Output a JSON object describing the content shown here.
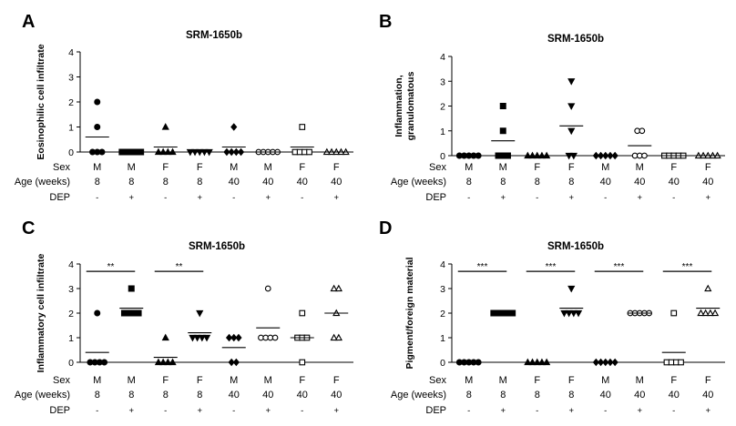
{
  "panel_letters": [
    "A",
    "B",
    "C",
    "D"
  ],
  "table_row_labels": [
    "Sex",
    "Age (weeks)",
    "DEP"
  ],
  "table_columns": [
    {
      "sex": "M",
      "age": "8",
      "dep": "-"
    },
    {
      "sex": "M",
      "age": "8",
      "dep": "+"
    },
    {
      "sex": "F",
      "age": "8",
      "dep": "-"
    },
    {
      "sex": "F",
      "age": "8",
      "dep": "+"
    },
    {
      "sex": "M",
      "age": "40",
      "dep": "-"
    },
    {
      "sex": "M",
      "age": "40",
      "dep": "+"
    },
    {
      "sex": "F",
      "age": "40",
      "dep": "-"
    },
    {
      "sex": "F",
      "age": "40",
      "dep": "+"
    }
  ],
  "marker_shapes": [
    "circle",
    "square",
    "triangle",
    "triangle-down",
    "diamond",
    "circle-open",
    "square-open",
    "triangle-open"
  ],
  "chart_data": [
    {
      "type": "scatter",
      "panel": "A",
      "title": "SRM-1650b",
      "ylabel": "Eosinophilic cell infiltrate",
      "ylim": [
        0,
        4
      ],
      "yticks": [
        "0",
        "1",
        "2",
        "3",
        "4"
      ],
      "groups": [
        {
          "values": [
            2,
            1,
            0,
            0,
            0
          ],
          "mean": 0.6
        },
        {
          "values": [
            0,
            0,
            0,
            0,
            0
          ],
          "mean": 0.0
        },
        {
          "values": [
            1,
            0,
            0,
            0,
            0
          ],
          "mean": 0.2
        },
        {
          "values": [
            0,
            0,
            0,
            0,
            0
          ],
          "mean": 0.0
        },
        {
          "values": [
            1,
            0,
            0,
            0,
            0
          ],
          "mean": 0.2
        },
        {
          "values": [
            0,
            0,
            0,
            0,
            0
          ],
          "mean": 0.0
        },
        {
          "values": [
            1,
            0,
            0,
            0,
            0
          ],
          "mean": 0.2
        },
        {
          "values": [
            0,
            0,
            0,
            0,
            0
          ],
          "mean": 0.0
        }
      ],
      "significance": []
    },
    {
      "type": "scatter",
      "panel": "B",
      "title": "SRM-1650b",
      "ylabel": "Inflammation, granulomatous",
      "ylim": [
        0,
        4
      ],
      "yticks": [
        "0",
        "1",
        "2",
        "3",
        "4"
      ],
      "groups": [
        {
          "values": [
            0,
            0,
            0,
            0,
            0
          ],
          "mean": 0.0
        },
        {
          "values": [
            2,
            1,
            0,
            0,
            0
          ],
          "mean": 0.6
        },
        {
          "values": [
            0,
            0,
            0,
            0,
            0
          ],
          "mean": 0.0
        },
        {
          "values": [
            3,
            2,
            1,
            0,
            0
          ],
          "mean": 1.2
        },
        {
          "values": [
            0,
            0,
            0,
            0,
            0
          ],
          "mean": 0.0
        },
        {
          "values": [
            1,
            1,
            0,
            0,
            0
          ],
          "mean": 0.4
        },
        {
          "values": [
            0,
            0,
            0,
            0,
            0
          ],
          "mean": 0.0
        },
        {
          "values": [
            0,
            0,
            0,
            0,
            0
          ],
          "mean": 0.0
        }
      ],
      "significance": []
    },
    {
      "type": "scatter",
      "panel": "C",
      "title": "SRM-1650b",
      "ylabel": "Inflammatory cell infiltrate",
      "ylim": [
        0,
        4
      ],
      "yticks": [
        "0",
        "1",
        "2",
        "3",
        "4"
      ],
      "groups": [
        {
          "values": [
            2,
            0,
            0,
            0,
            0
          ],
          "mean": 0.4
        },
        {
          "values": [
            3,
            2,
            2,
            2,
            2
          ],
          "mean": 2.2
        },
        {
          "values": [
            1,
            0,
            0,
            0,
            0
          ],
          "mean": 0.2
        },
        {
          "values": [
            2,
            1,
            1,
            1,
            1
          ],
          "mean": 1.2
        },
        {
          "values": [
            1,
            1,
            1,
            0,
            0
          ],
          "mean": 0.6
        },
        {
          "values": [
            3,
            1,
            1,
            1,
            1
          ],
          "mean": 1.4
        },
        {
          "values": [
            2,
            1,
            1,
            1,
            0
          ],
          "mean": 1.0
        },
        {
          "values": [
            3,
            3,
            2,
            1,
            1
          ],
          "mean": 2.0
        }
      ],
      "significance": [
        {
          "from": 0,
          "to": 1,
          "label": "**"
        },
        {
          "from": 2,
          "to": 3,
          "label": "**"
        }
      ]
    },
    {
      "type": "scatter",
      "panel": "D",
      "title": "SRM-1650b",
      "ylabel": "Pigment/foreign material",
      "ylim": [
        0,
        4
      ],
      "yticks": [
        "0",
        "1",
        "2",
        "3",
        "4"
      ],
      "groups": [
        {
          "values": [
            0,
            0,
            0,
            0,
            0
          ],
          "mean": 0.0
        },
        {
          "values": [
            2,
            2,
            2,
            2,
            2
          ],
          "mean": 2.0
        },
        {
          "values": [
            0,
            0,
            0,
            0,
            0
          ],
          "mean": 0.0
        },
        {
          "values": [
            3,
            2,
            2,
            2,
            2
          ],
          "mean": 2.2
        },
        {
          "values": [
            0,
            0,
            0,
            0,
            0
          ],
          "mean": 0.0
        },
        {
          "values": [
            2,
            2,
            2,
            2,
            2
          ],
          "mean": 2.0
        },
        {
          "values": [
            2,
            0,
            0,
            0,
            0
          ],
          "mean": 0.4
        },
        {
          "values": [
            3,
            2,
            2,
            2,
            2
          ],
          "mean": 2.2
        }
      ],
      "significance": [
        {
          "from": 0,
          "to": 1,
          "label": "***"
        },
        {
          "from": 2,
          "to": 3,
          "label": "***"
        },
        {
          "from": 4,
          "to": 5,
          "label": "***"
        },
        {
          "from": 6,
          "to": 7,
          "label": "***"
        }
      ]
    }
  ]
}
